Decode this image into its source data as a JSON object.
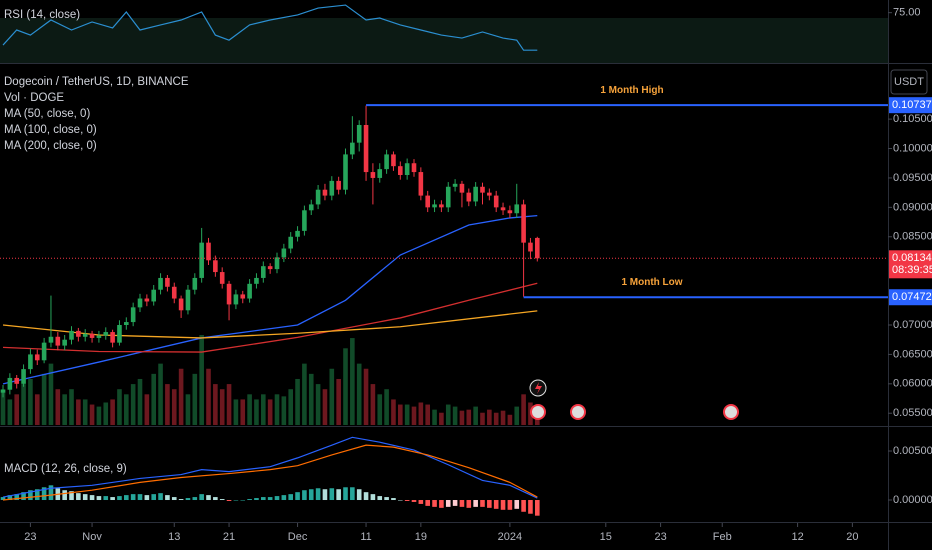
{
  "chart_data": [
    {
      "type": "candlestick",
      "title": "Dogecoin / TetherUS, 1D, BINANCE",
      "volume_label": "Vol · DOGE",
      "currency": "USDT",
      "up_color": "#26a65b",
      "down_color": "#f23645",
      "x": [
        0,
        1,
        2,
        3,
        4,
        5,
        6,
        7,
        8,
        9,
        10,
        11,
        12,
        13,
        14,
        15,
        16,
        17,
        18,
        19,
        20,
        21,
        22,
        23,
        24,
        25,
        26,
        27,
        28,
        29,
        30,
        31,
        32,
        33,
        34,
        35,
        36,
        37,
        38,
        39,
        40,
        41,
        42,
        43,
        44,
        45,
        46,
        47,
        48,
        49,
        50,
        51,
        52,
        53,
        54,
        55,
        56,
        57,
        58,
        59,
        60,
        61,
        62,
        63,
        64,
        65,
        66,
        67,
        68,
        69,
        70,
        71,
        72,
        73,
        74,
        75,
        76,
        77,
        78
      ],
      "ohlc": [
        [
          0.0585,
          0.0598,
          0.0577,
          0.059
        ],
        [
          0.059,
          0.0618,
          0.0582,
          0.061
        ],
        [
          0.061,
          0.0615,
          0.0592,
          0.06
        ],
        [
          0.06,
          0.0633,
          0.0595,
          0.0625
        ],
        [
          0.0625,
          0.066,
          0.0617,
          0.065
        ],
        [
          0.065,
          0.0658,
          0.0632,
          0.064
        ],
        [
          0.064,
          0.0678,
          0.0635,
          0.067
        ],
        [
          0.067,
          0.075,
          0.0662,
          0.068
        ],
        [
          0.068,
          0.0688,
          0.0657,
          0.0665
        ],
        [
          0.0665,
          0.0683,
          0.0657,
          0.0675
        ],
        [
          0.0675,
          0.0698,
          0.0667,
          0.069
        ],
        [
          0.069,
          0.0695,
          0.0672,
          0.068
        ],
        [
          0.068,
          0.0693,
          0.0672,
          0.0685
        ],
        [
          0.0685,
          0.069,
          0.067,
          0.0678
        ],
        [
          0.0678,
          0.069,
          0.067,
          0.0682
        ],
        [
          0.0682,
          0.0696,
          0.0675,
          0.0688
        ],
        [
          0.0688,
          0.0692,
          0.0662,
          0.067
        ],
        [
          0.067,
          0.0708,
          0.0665,
          0.07
        ],
        [
          0.07,
          0.0713,
          0.0692,
          0.0705
        ],
        [
          0.0705,
          0.0738,
          0.0698,
          0.073
        ],
        [
          0.073,
          0.0753,
          0.0722,
          0.0745
        ],
        [
          0.0745,
          0.0752,
          0.0732,
          0.074
        ],
        [
          0.074,
          0.0768,
          0.0733,
          0.076
        ],
        [
          0.076,
          0.0788,
          0.0752,
          0.078
        ],
        [
          0.078,
          0.0785,
          0.0757,
          0.0765
        ],
        [
          0.0765,
          0.0772,
          0.0737,
          0.0745
        ],
        [
          0.0745,
          0.075,
          0.0712,
          0.0725
        ],
        [
          0.0725,
          0.0768,
          0.0718,
          0.076
        ],
        [
          0.076,
          0.0788,
          0.0752,
          0.078
        ],
        [
          0.078,
          0.0865,
          0.0772,
          0.084
        ],
        [
          0.084,
          0.0848,
          0.0802,
          0.081
        ],
        [
          0.081,
          0.0818,
          0.0782,
          0.079
        ],
        [
          0.079,
          0.0798,
          0.0762,
          0.077
        ],
        [
          0.077,
          0.0775,
          0.0708,
          0.0735
        ],
        [
          0.0735,
          0.076,
          0.0727,
          0.0752
        ],
        [
          0.0752,
          0.0758,
          0.0737,
          0.0745
        ],
        [
          0.0745,
          0.0778,
          0.0738,
          0.077
        ],
        [
          0.077,
          0.0788,
          0.0762,
          0.078
        ],
        [
          0.078,
          0.0808,
          0.0772,
          0.08
        ],
        [
          0.08,
          0.0805,
          0.0787,
          0.0795
        ],
        [
          0.0795,
          0.0823,
          0.0788,
          0.0815
        ],
        [
          0.0815,
          0.0838,
          0.0807,
          0.083
        ],
        [
          0.083,
          0.0858,
          0.0822,
          0.085
        ],
        [
          0.085,
          0.0868,
          0.0842,
          0.086
        ],
        [
          0.086,
          0.0903,
          0.0852,
          0.0895
        ],
        [
          0.0895,
          0.0913,
          0.0887,
          0.0905
        ],
        [
          0.0905,
          0.0938,
          0.0897,
          0.093
        ],
        [
          0.093,
          0.094,
          0.0912,
          0.092
        ],
        [
          0.092,
          0.0953,
          0.0912,
          0.0945
        ],
        [
          0.0945,
          0.0952,
          0.0922,
          0.093
        ],
        [
          0.093,
          0.1,
          0.0922,
          0.099
        ],
        [
          0.099,
          0.1055,
          0.0982,
          0.101
        ],
        [
          0.101,
          0.1048,
          0.0995,
          0.104
        ],
        [
          0.104,
          0.1073,
          0.0945,
          0.096
        ],
        [
          0.096,
          0.0975,
          0.0905,
          0.095
        ],
        [
          0.095,
          0.0975,
          0.0942,
          0.0965
        ],
        [
          0.0965,
          0.0998,
          0.0957,
          0.099
        ],
        [
          0.099,
          0.0995,
          0.0962,
          0.097
        ],
        [
          0.097,
          0.0978,
          0.0947,
          0.0955
        ],
        [
          0.0955,
          0.0983,
          0.0947,
          0.0975
        ],
        [
          0.0975,
          0.0982,
          0.0952,
          0.096
        ],
        [
          0.096,
          0.0968,
          0.0912,
          0.092
        ],
        [
          0.092,
          0.0928,
          0.0892,
          0.09
        ],
        [
          0.09,
          0.0913,
          0.0892,
          0.0905
        ],
        [
          0.0905,
          0.0912,
          0.0892,
          0.09
        ],
        [
          0.09,
          0.0943,
          0.0892,
          0.0935
        ],
        [
          0.0935,
          0.0948,
          0.0927,
          0.094
        ],
        [
          0.094,
          0.0945,
          0.09,
          0.0925
        ],
        [
          0.0925,
          0.0932,
          0.0902,
          0.091
        ],
        [
          0.091,
          0.0943,
          0.0902,
          0.0935
        ],
        [
          0.0935,
          0.0942,
          0.0905,
          0.0925
        ],
        [
          0.0925,
          0.0932,
          0.0912,
          0.092
        ],
        [
          0.092,
          0.0928,
          0.0892,
          0.09
        ],
        [
          0.09,
          0.0908,
          0.0887,
          0.0895
        ],
        [
          0.0895,
          0.0903,
          0.0882,
          0.089
        ],
        [
          0.089,
          0.094,
          0.0882,
          0.0905
        ],
        [
          0.0905,
          0.0913,
          0.0748,
          0.084
        ],
        [
          0.084,
          0.0848,
          0.0812,
          0.0825
        ],
        [
          0.0848,
          0.085,
          0.0808,
          0.08134
        ]
      ],
      "volume": [
        35,
        25,
        30,
        40,
        45,
        30,
        50,
        60,
        35,
        30,
        35,
        25,
        25,
        20,
        18,
        22,
        25,
        35,
        30,
        40,
        45,
        30,
        50,
        60,
        40,
        35,
        55,
        30,
        50,
        88,
        55,
        40,
        35,
        40,
        25,
        25,
        30,
        25,
        30,
        25,
        30,
        28,
        35,
        45,
        60,
        50,
        40,
        35,
        55,
        45,
        75,
        85,
        60,
        55,
        40,
        30,
        35,
        25,
        20,
        20,
        18,
        22,
        20,
        15,
        12,
        20,
        18,
        14,
        15,
        18,
        12,
        15,
        12,
        14,
        10,
        18,
        30,
        22,
        8
      ],
      "moving_averages": [
        {
          "name": "MA (50, close, 0)",
          "color": "#2962ff",
          "x": [
            0,
            14,
            29,
            43,
            50,
            58,
            68,
            74,
            78
          ],
          "values": [
            0.06,
            0.0637,
            0.0678,
            0.07,
            0.0742,
            0.0819,
            0.087,
            0.0882,
            0.0886
          ]
        },
        {
          "name": "MA (100, close, 0)",
          "color": "#d32f2f",
          "x": [
            0,
            14,
            29,
            43,
            58,
            68,
            78
          ],
          "values": [
            0.0662,
            0.0655,
            0.0654,
            0.0679,
            0.0712,
            0.0742,
            0.0771
          ]
        },
        {
          "name": "MA (200, close, 0)",
          "color": "#f5a623",
          "x": [
            0,
            14,
            29,
            43,
            58,
            78
          ],
          "values": [
            0.07,
            0.0683,
            0.0678,
            0.0686,
            0.0697,
            0.0724
          ]
        }
      ],
      "levels": [
        {
          "name": "1 Month High",
          "value": 0.10737,
          "x0": 53,
          "color": "#2962ff",
          "label_color": "#f7a33b"
        },
        {
          "name": "1 Month Low",
          "value": 0.07472,
          "x0": 76,
          "color": "#2962ff",
          "label_color": "#f7a33b"
        }
      ],
      "last_price": {
        "value": 0.08134,
        "countdown": "08:39:35",
        "color": "#f23645"
      },
      "xlim": [
        -0.44,
        129.2
      ],
      "xticks": [
        {
          "value": 4,
          "label": "23"
        },
        {
          "value": 13,
          "label": "Nov"
        },
        {
          "value": 25,
          "label": "13"
        },
        {
          "value": 33,
          "label": "21"
        },
        {
          "value": 43,
          "label": "Dec"
        },
        {
          "value": 53,
          "label": "11"
        },
        {
          "value": 61,
          "label": "19"
        },
        {
          "value": 74,
          "label": "2024"
        },
        {
          "value": 88,
          "label": "15"
        },
        {
          "value": 96,
          "label": "23"
        },
        {
          "value": 105,
          "label": "Feb"
        },
        {
          "value": 116,
          "label": "12"
        },
        {
          "value": 124,
          "label": "20"
        }
      ],
      "ylim": [
        0.053,
        0.1142
      ],
      "yticks": [
        {
          "value": 0.055,
          "label": "0.05500"
        },
        {
          "value": 0.06,
          "label": "0.06000"
        },
        {
          "value": 0.065,
          "label": "0.06500"
        },
        {
          "value": 0.07,
          "label": "0.07000"
        },
        {
          "value": 0.085,
          "label": "0.08500"
        },
        {
          "value": 0.09,
          "label": "0.09000"
        },
        {
          "value": 0.095,
          "label": "0.09500"
        },
        {
          "value": 0.1,
          "label": "0.10000"
        },
        {
          "value": 0.105,
          "label": "0.10500"
        }
      ]
    },
    {
      "type": "line",
      "title": "RSI (14, close)",
      "series": [
        {
          "color": "#2b8fd1",
          "x": [
            0,
            2,
            4,
            7,
            10,
            13,
            16,
            18,
            20,
            23,
            26,
            29,
            31,
            33,
            36,
            39,
            43,
            46,
            50,
            53,
            55,
            58,
            61,
            64,
            67,
            70,
            73,
            75,
            76,
            78
          ],
          "values": [
            52.0,
            62.7,
            59.1,
            69.8,
            62.7,
            68.4,
            64.2,
            75.5,
            62.7,
            66.3,
            69.8,
            75.5,
            59.1,
            55.5,
            66.3,
            69.8,
            73.4,
            78.3,
            80.4,
            69.8,
            71.2,
            66.3,
            62.7,
            59.1,
            57.0,
            61.3,
            57.0,
            55.5,
            48.4,
            48.4
          ]
        }
      ],
      "ylim": [
        40,
        84
      ],
      "yticks": [
        {
          "value": 75,
          "label": "75.00"
        }
      ]
    },
    {
      "type": "macd",
      "title": "MACD (12, 26, close, 9)",
      "histogram": [
        0.0003,
        0.0005,
        0.0006,
        0.0008,
        0.001,
        0.0011,
        0.0013,
        0.0015,
        0.0012,
        0.001,
        0.0009,
        0.0007,
        0.0006,
        0.0005,
        0.0004,
        0.0004,
        0.0003,
        0.0004,
        0.0005,
        0.0006,
        0.0006,
        0.0005,
        0.0006,
        0.0007,
        0.0005,
        0.0003,
        0.0001,
        0.0002,
        0.0003,
        0.0006,
        0.0005,
        0.0003,
        0.0001,
        -0.0001,
        0.0,
        0.0,
        0.0001,
        0.0002,
        0.0003,
        0.0003,
        0.0004,
        0.0005,
        0.0006,
        0.0008,
        0.001,
        0.0011,
        0.0012,
        0.0011,
        0.0012,
        0.0011,
        0.0013,
        0.0013,
        0.0011,
        0.0008,
        0.0006,
        0.0004,
        0.0003,
        0.0002,
        0.0,
        -0.0001,
        -0.0002,
        -0.0004,
        -0.0006,
        -0.0007,
        -0.0008,
        -0.0007,
        -0.0006,
        -0.0007,
        -0.0008,
        -0.0007,
        -0.0007,
        -0.0008,
        -0.0009,
        -0.001,
        -0.001,
        -0.0009,
        -0.0012,
        -0.0014,
        -0.0016
      ],
      "histogram_colors": [
        "#26a69a",
        "#b2dfdb",
        "#ff5252",
        "#ffcdd2"
      ],
      "series": [
        {
          "color": "#2962ff",
          "x": [
            0,
            7,
            13,
            20,
            26,
            29,
            33,
            39,
            43,
            48,
            51,
            55,
            60,
            65,
            70,
            74,
            78
          ],
          "values": [
            0.0003,
            0.0012,
            0.0015,
            0.0022,
            0.0026,
            0.0031,
            0.0029,
            0.0034,
            0.0043,
            0.0056,
            0.0064,
            0.0059,
            0.0051,
            0.0036,
            0.002,
            0.0015,
            0.0002
          ]
        },
        {
          "color": "#ff6d00",
          "x": [
            0,
            7,
            13,
            20,
            26,
            33,
            39,
            43,
            48,
            53,
            57,
            62,
            68,
            74,
            78
          ],
          "values": [
            0,
            0.0005,
            0.001,
            0.0018,
            0.0023,
            0.0027,
            0.0031,
            0.0035,
            0.0046,
            0.0056,
            0.0054,
            0.0046,
            0.0033,
            0.0018,
            0.0003
          ]
        }
      ],
      "ylim": [
        -0.00204,
        0.00735
      ],
      "yticks": [
        {
          "value": 0,
          "label": "0.00000"
        },
        {
          "value": 0.005,
          "label": "0.00500"
        }
      ]
    }
  ]
}
